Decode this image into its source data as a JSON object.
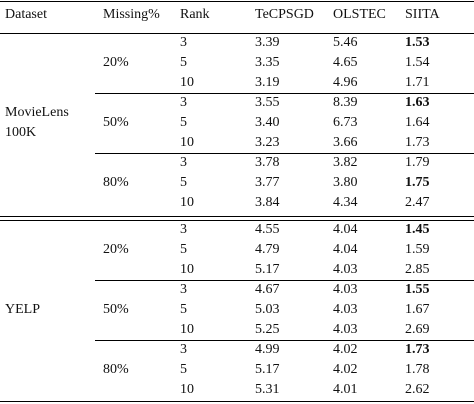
{
  "table": {
    "header": [
      "Dataset",
      "Missing%",
      "Rank",
      "TeCPSGD",
      "OLSTEC",
      "SIITA"
    ],
    "datasets": [
      {
        "name_lines": [
          "MovieLens",
          "100K"
        ],
        "groups": [
          {
            "missing": "20%",
            "rows": [
              {
                "rank": "3",
                "tecpsgd": "3.39",
                "olstec": "5.46",
                "siita": "1.53",
                "siita_bold": true
              },
              {
                "rank": "5",
                "tecpsgd": "3.35",
                "olstec": "4.65",
                "siita": "1.54",
                "siita_bold": false
              },
              {
                "rank": "10",
                "tecpsgd": "3.19",
                "olstec": "4.96",
                "siita": "1.71",
                "siita_bold": false
              }
            ]
          },
          {
            "missing": "50%",
            "rows": [
              {
                "rank": "3",
                "tecpsgd": "3.55",
                "olstec": "8.39",
                "siita": "1.63",
                "siita_bold": true
              },
              {
                "rank": "5",
                "tecpsgd": "3.40",
                "olstec": "6.73",
                "siita": "1.64",
                "siita_bold": false
              },
              {
                "rank": "10",
                "tecpsgd": "3.23",
                "olstec": "3.66",
                "siita": "1.73",
                "siita_bold": false
              }
            ]
          },
          {
            "missing": "80%",
            "rows": [
              {
                "rank": "3",
                "tecpsgd": "3.78",
                "olstec": "3.82",
                "siita": "1.79",
                "siita_bold": false
              },
              {
                "rank": "5",
                "tecpsgd": "3.77",
                "olstec": "3.80",
                "siita": "1.75",
                "siita_bold": true
              },
              {
                "rank": "10",
                "tecpsgd": "3.84",
                "olstec": "4.34",
                "siita": "2.47",
                "siita_bold": false
              }
            ]
          }
        ]
      },
      {
        "name_lines": [
          "YELP"
        ],
        "groups": [
          {
            "missing": "20%",
            "rows": [
              {
                "rank": "3",
                "tecpsgd": "4.55",
                "olstec": "4.04",
                "siita": "1.45",
                "siita_bold": true
              },
              {
                "rank": "5",
                "tecpsgd": "4.79",
                "olstec": "4.04",
                "siita": "1.59",
                "siita_bold": false
              },
              {
                "rank": "10",
                "tecpsgd": "5.17",
                "olstec": "4.03",
                "siita": "2.85",
                "siita_bold": false
              }
            ]
          },
          {
            "missing": "50%",
            "rows": [
              {
                "rank": "3",
                "tecpsgd": "4.67",
                "olstec": "4.03",
                "siita": "1.55",
                "siita_bold": true
              },
              {
                "rank": "5",
                "tecpsgd": "5.03",
                "olstec": "4.03",
                "siita": "1.67",
                "siita_bold": false
              },
              {
                "rank": "10",
                "tecpsgd": "5.25",
                "olstec": "4.03",
                "siita": "2.69",
                "siita_bold": false
              }
            ]
          },
          {
            "missing": "80%",
            "rows": [
              {
                "rank": "3",
                "tecpsgd": "4.99",
                "olstec": "4.02",
                "siita": "1.73",
                "siita_bold": true
              },
              {
                "rank": "5",
                "tecpsgd": "5.17",
                "olstec": "4.02",
                "siita": "1.78",
                "siita_bold": false
              },
              {
                "rank": "10",
                "tecpsgd": "5.31",
                "olstec": "4.01",
                "siita": "2.62",
                "siita_bold": false
              }
            ]
          }
        ]
      }
    ]
  }
}
